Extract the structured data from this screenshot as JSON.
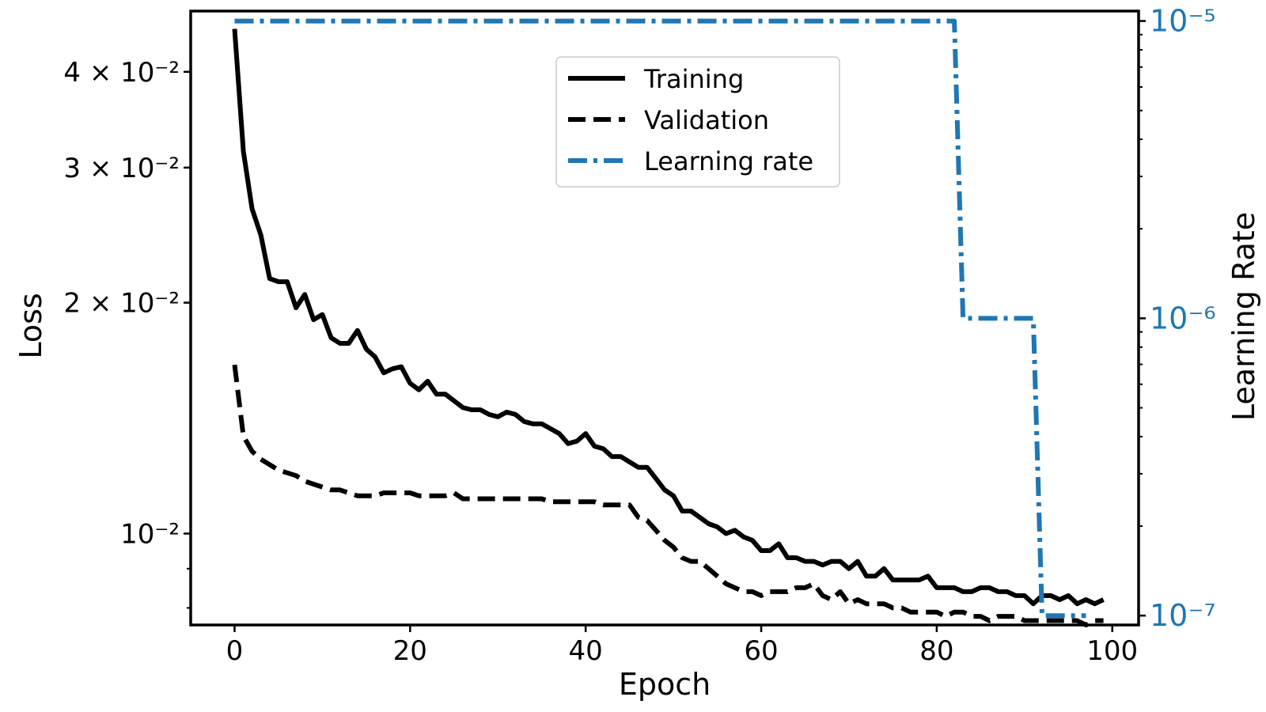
{
  "chart_data": {
    "type": "line",
    "title": "",
    "xlabel": "Epoch",
    "ylabel": "Loss",
    "y2label": "Learning Rate",
    "xlim": [
      -5,
      103
    ],
    "xticks": [
      0,
      20,
      40,
      60,
      80,
      100
    ],
    "ylim": [
      0.0076,
      0.048
    ],
    "yscale": "log",
    "yticks": [
      {
        "value": 0.04,
        "label": "4 × 10⁻²"
      },
      {
        "value": 0.03,
        "label": "3 × 10⁻²"
      },
      {
        "value": 0.02,
        "label": "2 × 10⁻²"
      },
      {
        "value": 0.01,
        "label": "10⁻²"
      }
    ],
    "y2lim": [
      9.3e-08,
      1.08e-05
    ],
    "y2scale": "log",
    "y2ticks": [
      {
        "value": 1e-05,
        "label": "10⁻⁵"
      },
      {
        "value": 1e-06,
        "label": "10⁻⁶"
      },
      {
        "value": 1e-07,
        "label": "10⁻⁷"
      }
    ],
    "legend_position": "upper-center",
    "series": [
      {
        "name": "Training",
        "axis": "left",
        "color": "#000000",
        "linestyle": "solid",
        "x": [
          0,
          1,
          2,
          3,
          4,
          5,
          6,
          7,
          8,
          9,
          10,
          11,
          12,
          13,
          14,
          15,
          16,
          17,
          18,
          19,
          20,
          21,
          22,
          23,
          24,
          25,
          26,
          27,
          28,
          29,
          30,
          31,
          32,
          33,
          34,
          35,
          36,
          37,
          38,
          39,
          40,
          41,
          42,
          43,
          44,
          45,
          46,
          47,
          48,
          49,
          50,
          51,
          52,
          53,
          54,
          55,
          56,
          57,
          58,
          59,
          60,
          61,
          62,
          63,
          64,
          65,
          66,
          67,
          68,
          69,
          70,
          71,
          72,
          73,
          74,
          75,
          76,
          77,
          78,
          79,
          80,
          81,
          82,
          83,
          84,
          85,
          86,
          87,
          88,
          89,
          90,
          91,
          92,
          93,
          94,
          95,
          96,
          97,
          98,
          99
        ],
        "values": [
          0.0455,
          0.0315,
          0.0265,
          0.0245,
          0.0215,
          0.0213,
          0.0213,
          0.0197,
          0.0205,
          0.019,
          0.0193,
          0.018,
          0.0177,
          0.0177,
          0.0184,
          0.0174,
          0.017,
          0.0162,
          0.0164,
          0.0165,
          0.0157,
          0.0154,
          0.0158,
          0.0152,
          0.0152,
          0.0149,
          0.0146,
          0.0145,
          0.0145,
          0.0143,
          0.0142,
          0.0144,
          0.0143,
          0.014,
          0.0139,
          0.0139,
          0.0137,
          0.0135,
          0.0131,
          0.0132,
          0.0135,
          0.013,
          0.0129,
          0.0126,
          0.0126,
          0.0124,
          0.0122,
          0.0122,
          0.0118,
          0.0114,
          0.0112,
          0.0107,
          0.0107,
          0.0105,
          0.0103,
          0.0102,
          0.01,
          0.0101,
          0.0099,
          0.0098,
          0.0095,
          0.0095,
          0.0097,
          0.0093,
          0.0093,
          0.0092,
          0.0092,
          0.0091,
          0.0092,
          0.0092,
          0.009,
          0.0092,
          0.0088,
          0.0088,
          0.009,
          0.0087,
          0.0087,
          0.0087,
          0.0087,
          0.0088,
          0.0085,
          0.0085,
          0.0085,
          0.0084,
          0.0084,
          0.0085,
          0.0085,
          0.0084,
          0.0084,
          0.0083,
          0.0083,
          0.0081,
          0.0083,
          0.0083,
          0.0082,
          0.0083,
          0.0081,
          0.0082,
          0.0081,
          0.0082
        ]
      },
      {
        "name": "Validation",
        "axis": "left",
        "color": "#000000",
        "linestyle": "dashed",
        "x": [
          0,
          1,
          2,
          3,
          4,
          5,
          6,
          7,
          8,
          9,
          10,
          11,
          12,
          13,
          14,
          15,
          16,
          17,
          18,
          19,
          20,
          21,
          22,
          23,
          24,
          25,
          26,
          27,
          28,
          29,
          30,
          31,
          32,
          33,
          34,
          35,
          36,
          37,
          38,
          39,
          40,
          41,
          42,
          43,
          44,
          45,
          46,
          47,
          48,
          49,
          50,
          51,
          52,
          53,
          54,
          55,
          56,
          57,
          58,
          59,
          60,
          61,
          62,
          63,
          64,
          65,
          66,
          67,
          68,
          69,
          70,
          71,
          72,
          73,
          74,
          75,
          76,
          77,
          78,
          79,
          80,
          81,
          82,
          83,
          84,
          85,
          86,
          87,
          88,
          89,
          90,
          91,
          92,
          93,
          94,
          95,
          96,
          97,
          98,
          99
        ],
        "values": [
          0.0166,
          0.0134,
          0.0128,
          0.0125,
          0.0123,
          0.0121,
          0.012,
          0.0119,
          0.0117,
          0.0116,
          0.0115,
          0.0114,
          0.0114,
          0.0113,
          0.0112,
          0.0112,
          0.0112,
          0.0113,
          0.0113,
          0.0113,
          0.0113,
          0.0112,
          0.0112,
          0.0112,
          0.0112,
          0.0113,
          0.0111,
          0.0111,
          0.0111,
          0.0111,
          0.0111,
          0.0111,
          0.0111,
          0.0111,
          0.0111,
          0.0111,
          0.011,
          0.011,
          0.011,
          0.011,
          0.011,
          0.011,
          0.0109,
          0.0109,
          0.0109,
          0.0109,
          0.0105,
          0.0104,
          0.0101,
          0.0098,
          0.0096,
          0.0093,
          0.0092,
          0.0092,
          0.009,
          0.0088,
          0.0086,
          0.0085,
          0.0084,
          0.0084,
          0.0083,
          0.0084,
          0.0084,
          0.0084,
          0.0085,
          0.0085,
          0.0086,
          0.0083,
          0.0082,
          0.0084,
          0.0081,
          0.0082,
          0.0081,
          0.0081,
          0.0081,
          0.008,
          0.008,
          0.0079,
          0.0079,
          0.0079,
          0.0079,
          0.0078,
          0.0079,
          0.0079,
          0.0078,
          0.0078,
          0.0077,
          0.0078,
          0.0078,
          0.0078,
          0.0077,
          0.0077,
          0.0077,
          0.0077,
          0.0077,
          0.0077,
          0.0077,
          0.0076,
          0.0077,
          0.0077
        ]
      },
      {
        "name": "Learning rate",
        "axis": "right",
        "color": "#1f77b4",
        "linestyle": "dashdot",
        "x": [
          0,
          82,
          83,
          91,
          92,
          97
        ],
        "values": [
          1e-05,
          1e-05,
          1e-06,
          1e-06,
          1e-07,
          1e-07
        ]
      }
    ]
  }
}
